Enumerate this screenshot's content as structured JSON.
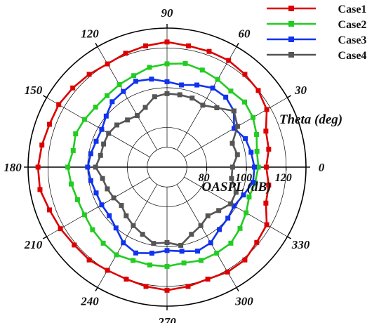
{
  "chart_data": {
    "type": "polar-line",
    "angular_axis_title": "Theta (deg)",
    "radial_axis_title": "OASPL (dB)",
    "angle_ticks": [
      0,
      30,
      60,
      90,
      120,
      150,
      180,
      210,
      240,
      270,
      300,
      330
    ],
    "radial_ticks": [
      80,
      100,
      120
    ],
    "rlim": [
      60,
      130
    ],
    "grid": true,
    "legend_position": "top-right",
    "angles": [
      0,
      10,
      20,
      30,
      40,
      50,
      60,
      70,
      80,
      90,
      100,
      110,
      120,
      130,
      140,
      150,
      160,
      170,
      180,
      190,
      200,
      210,
      220,
      230,
      240,
      250,
      260,
      270,
      280,
      290,
      300,
      310,
      320,
      330,
      340,
      350
    ],
    "series": [
      {
        "name": "Case1",
        "color": "#dd0000",
        "values": [
          110,
          112,
          113,
          118,
          120,
          121,
          122,
          122,
          122,
          123,
          122,
          121,
          120,
          121,
          122,
          123,
          123,
          124,
          125,
          125,
          123,
          122,
          121,
          121,
          120,
          120,
          121,
          122,
          121,
          120,
          121,
          121,
          119,
          118,
          113,
          112
        ]
      },
      {
        "name": "Case2",
        "color": "#22cc22",
        "values": [
          106,
          106,
          108,
          110,
          111,
          110,
          111,
          112,
          113,
          112,
          111,
          109,
          108,
          107,
          107,
          108,
          109,
          108,
          110,
          109,
          108,
          108,
          109,
          110,
          111,
          110,
          110,
          110,
          109,
          110,
          110,
          110,
          108,
          106,
          104,
          105
        ]
      },
      {
        "name": "Case3",
        "color": "#1133ee",
        "values": [
          104,
          103,
          102,
          99,
          104,
          106,
          106,
          104,
          102,
          103,
          105,
          106,
          104,
          103,
          100,
          98,
          98,
          99,
          100,
          99,
          98,
          98,
          98,
          100,
          104,
          106,
          104,
          102,
          103,
          105,
          104,
          101,
          100,
          99,
          101,
          104
        ]
      },
      {
        "name": "Case4",
        "color": "#555555",
        "values": [
          93,
          96,
          95,
          101,
          104,
          99,
          96,
          97,
          97,
          97,
          96,
          92,
          90,
          91,
          93,
          94,
          94,
          94,
          96,
          93,
          92,
          91,
          90,
          92,
          94,
          96,
          99,
          98,
          100,
          96,
          94,
          92,
          94,
          97,
          97,
          93
        ]
      }
    ]
  }
}
